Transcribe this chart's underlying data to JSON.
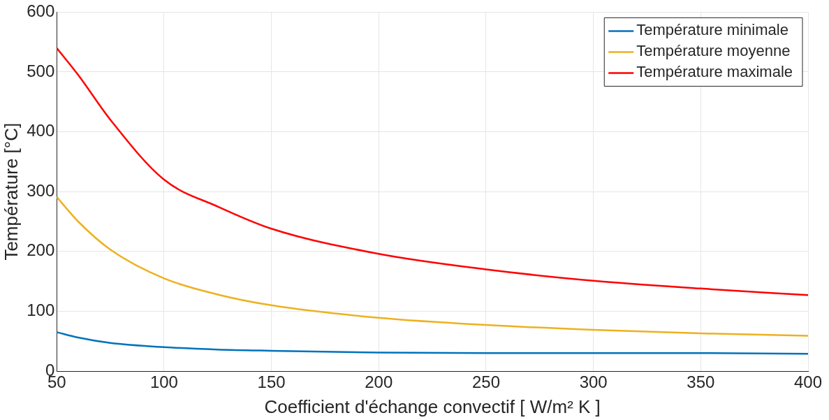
{
  "chart_data": {
    "type": "line",
    "xlabel": "Coefficient d'échange convectif [ W/m² K ]",
    "ylabel": "Température [°C]",
    "x": [
      50,
      60,
      75,
      100,
      125,
      150,
      200,
      250,
      300,
      350,
      400
    ],
    "series": [
      {
        "name": "Température minimale",
        "color": "#0072bd",
        "values": [
          65,
          56,
          47,
          40,
          36,
          34,
          31,
          30,
          30,
          30,
          29
        ]
      },
      {
        "name": "Température moyenne",
        "color": "#edb120",
        "values": [
          291,
          250,
          203,
          155,
          128,
          110,
          89,
          77,
          69,
          63,
          59
        ]
      },
      {
        "name": "Température maximale",
        "color": "#ff0000",
        "values": [
          540,
          495,
          420,
          320,
          275,
          238,
          196,
          170,
          151,
          138,
          127
        ]
      }
    ],
    "xlim": [
      50,
      400
    ],
    "xticks": [
      50,
      100,
      150,
      200,
      250,
      300,
      350,
      400
    ],
    "ylim": [
      0,
      600
    ],
    "yticks": [
      0,
      100,
      200,
      300,
      400,
      500,
      600
    ],
    "grid": true,
    "legend": "top right",
    "marker": "none",
    "line_style": "solid"
  }
}
